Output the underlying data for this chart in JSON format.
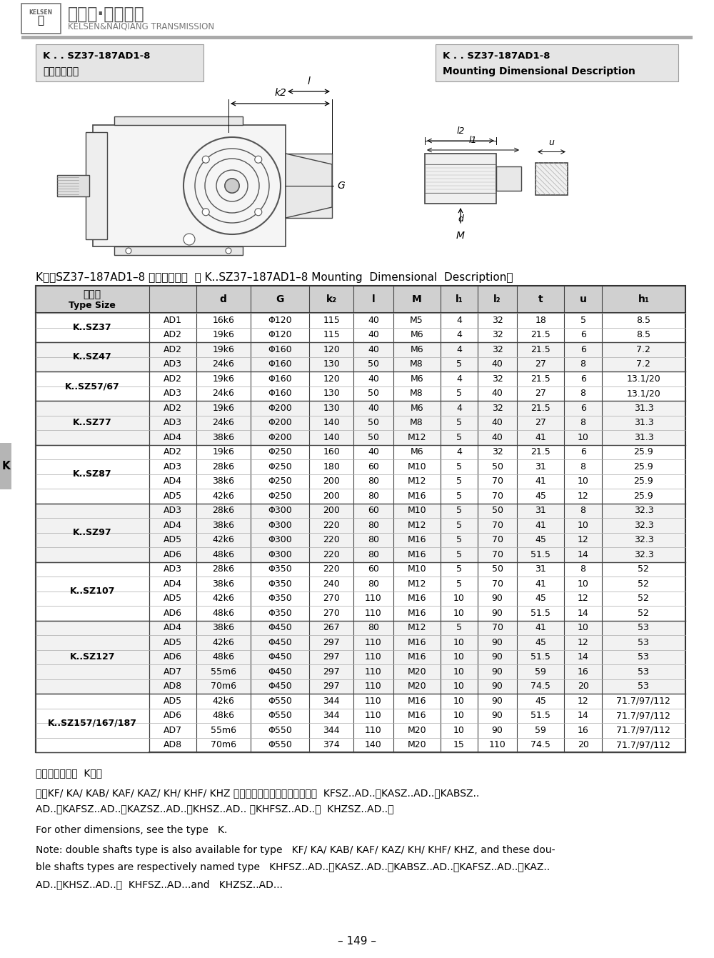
{
  "page_title_left_line1": "K . . SZ37-187AD1-8",
  "page_title_left_line2": "安装结构尺寸",
  "page_title_right_line1": "K . . SZ37-187AD1-8",
  "page_title_right_line2": "Mounting Dimensional Description",
  "header_logo_text": "凯尔森·耐强传动",
  "header_sub_text": "KELSEN&NAIQIANG TRANSMISSION",
  "table_title": "K．．SZ37–187AD1–8 安装结构尺寸  （ K..SZ37–187AD1–8 Mounting  Dimensional  Description）",
  "table_data": [
    [
      "K..SZ37",
      "AD1",
      "16k6",
      "Φ120",
      "115",
      "40",
      "M5",
      "4",
      "32",
      "18",
      "5",
      "8.5"
    ],
    [
      "K..SZ37",
      "AD2",
      "19k6",
      "Φ120",
      "115",
      "40",
      "M6",
      "4",
      "32",
      "21.5",
      "6",
      "8.5"
    ],
    [
      "K..SZ47",
      "AD2",
      "19k6",
      "Φ160",
      "120",
      "40",
      "M6",
      "4",
      "32",
      "21.5",
      "6",
      "7.2"
    ],
    [
      "K..SZ47",
      "AD3",
      "24k6",
      "Φ160",
      "130",
      "50",
      "M8",
      "5",
      "40",
      "27",
      "8",
      "7.2"
    ],
    [
      "K..SZ57/67",
      "AD2",
      "19k6",
      "Φ160",
      "120",
      "40",
      "M6",
      "4",
      "32",
      "21.5",
      "6",
      "13.1/20"
    ],
    [
      "K..SZ57/67",
      "AD3",
      "24k6",
      "Φ160",
      "130",
      "50",
      "M8",
      "5",
      "40",
      "27",
      "8",
      "13.1/20"
    ],
    [
      "K..SZ77",
      "AD2",
      "19k6",
      "Φ200",
      "130",
      "40",
      "M6",
      "4",
      "32",
      "21.5",
      "6",
      "31.3"
    ],
    [
      "K..SZ77",
      "AD3",
      "24k6",
      "Φ200",
      "140",
      "50",
      "M8",
      "5",
      "40",
      "27",
      "8",
      "31.3"
    ],
    [
      "K..SZ77",
      "AD4",
      "38k6",
      "Φ200",
      "140",
      "50",
      "M12",
      "5",
      "40",
      "41",
      "10",
      "31.3"
    ],
    [
      "K..SZ87",
      "AD2",
      "19k6",
      "Φ250",
      "160",
      "40",
      "M6",
      "4",
      "32",
      "21.5",
      "6",
      "25.9"
    ],
    [
      "K..SZ87",
      "AD3",
      "28k6",
      "Φ250",
      "180",
      "60",
      "M10",
      "5",
      "50",
      "31",
      "8",
      "25.9"
    ],
    [
      "K..SZ87",
      "AD4",
      "38k6",
      "Φ250",
      "200",
      "80",
      "M12",
      "5",
      "70",
      "41",
      "10",
      "25.9"
    ],
    [
      "K..SZ87",
      "AD5",
      "42k6",
      "Φ250",
      "200",
      "80",
      "M16",
      "5",
      "70",
      "45",
      "12",
      "25.9"
    ],
    [
      "K..SZ97",
      "AD3",
      "28k6",
      "Φ300",
      "200",
      "60",
      "M10",
      "5",
      "50",
      "31",
      "8",
      "32.3"
    ],
    [
      "K..SZ97",
      "AD4",
      "38k6",
      "Φ300",
      "220",
      "80",
      "M12",
      "5",
      "70",
      "41",
      "10",
      "32.3"
    ],
    [
      "K..SZ97",
      "AD5",
      "42k6",
      "Φ300",
      "220",
      "80",
      "M16",
      "5",
      "70",
      "45",
      "12",
      "32.3"
    ],
    [
      "K..SZ97",
      "AD6",
      "48k6",
      "Φ300",
      "220",
      "80",
      "M16",
      "5",
      "70",
      "51.5",
      "14",
      "32.3"
    ],
    [
      "K..SZ107",
      "AD3",
      "28k6",
      "Φ350",
      "220",
      "60",
      "M10",
      "5",
      "50",
      "31",
      "8",
      "52"
    ],
    [
      "K..SZ107",
      "AD4",
      "38k6",
      "Φ350",
      "240",
      "80",
      "M12",
      "5",
      "70",
      "41",
      "10",
      "52"
    ],
    [
      "K..SZ107",
      "AD5",
      "42k6",
      "Φ350",
      "270",
      "110",
      "M16",
      "10",
      "90",
      "45",
      "12",
      "52"
    ],
    [
      "K..SZ107",
      "AD6",
      "48k6",
      "Φ350",
      "270",
      "110",
      "M16",
      "10",
      "90",
      "51.5",
      "14",
      "52"
    ],
    [
      "K..SZ127",
      "AD4",
      "38k6",
      "Φ450",
      "267",
      "80",
      "M12",
      "5",
      "70",
      "41",
      "10",
      "53"
    ],
    [
      "K..SZ127",
      "AD5",
      "42k6",
      "Φ450",
      "297",
      "110",
      "M16",
      "10",
      "90",
      "45",
      "12",
      "53"
    ],
    [
      "K..SZ127",
      "AD6",
      "48k6",
      "Φ450",
      "297",
      "110",
      "M16",
      "10",
      "90",
      "51.5",
      "14",
      "53"
    ],
    [
      "K..SZ127",
      "AD7",
      "55m6",
      "Φ450",
      "297",
      "110",
      "M20",
      "10",
      "90",
      "59",
      "16",
      "53"
    ],
    [
      "K..SZ127",
      "AD8",
      "70m6",
      "Φ450",
      "297",
      "110",
      "M20",
      "10",
      "90",
      "74.5",
      "20",
      "53"
    ],
    [
      "K..SZ157/167/187",
      "AD5",
      "42k6",
      "Φ550",
      "344",
      "110",
      "M16",
      "10",
      "90",
      "45",
      "12",
      "71.7/97/112"
    ],
    [
      "K..SZ157/167/187",
      "AD6",
      "48k6",
      "Φ550",
      "344",
      "110",
      "M16",
      "10",
      "90",
      "51.5",
      "14",
      "71.7/97/112"
    ],
    [
      "K..SZ157/167/187",
      "AD7",
      "55m6",
      "Φ550",
      "344",
      "110",
      "M20",
      "10",
      "90",
      "59",
      "16",
      "71.7/97/112"
    ],
    [
      "K..SZ157/167/187",
      "AD8",
      "70m6",
      "Φ550",
      "374",
      "140",
      "M20",
      "15",
      "110",
      "74.5",
      "20",
      "71.7/97/112"
    ]
  ],
  "row_groups": [
    {
      "label": "K..SZ37",
      "rows": 2
    },
    {
      "label": "K..SZ47",
      "rows": 2
    },
    {
      "label": "K..SZ57/67",
      "rows": 2
    },
    {
      "label": "K..SZ77",
      "rows": 3
    },
    {
      "label": "K..SZ87",
      "rows": 4
    },
    {
      "label": "K..SZ97",
      "rows": 4
    },
    {
      "label": "K..SZ107",
      "rows": 4
    },
    {
      "label": "K..SZ127",
      "rows": 5
    },
    {
      "label": "K..SZ157/167/187",
      "rows": 4
    }
  ],
  "note_cn1": "其它尺寸请参照  K型。",
  "note_cn2": "注：KF/ KA/ KAB/ KAF/ KAZ/ KH/ KHF/ KHZ 也均可采用双轴型，并分别记为  KFSZ..AD..、KASZ..AD..、KABSZ..",
  "note_cn3": "AD..、KAFSZ..AD..、KAZSZ..AD..、KHSZ..AD.. 、KHFSZ..AD..和  KHZSZ..AD..。",
  "note_en1": "For other dimensions, see the type   K.",
  "note_en2": "Note: double shafts type is also available for type   KF/ KA/ KAB/ KAF/ KAZ/ KH/ KHF/ KHZ, and these dou-",
  "note_en3": "ble shafts types are respectively named type   KHFSZ..AD..、KASZ..AD..、KABSZ..AD..、KAFSZ..AD..、KAZ..",
  "note_en4": "AD..、KHSZ..AD..、  KHFSZ..AD...and   KHZSZ..AD...",
  "page_number": "– 149 –"
}
